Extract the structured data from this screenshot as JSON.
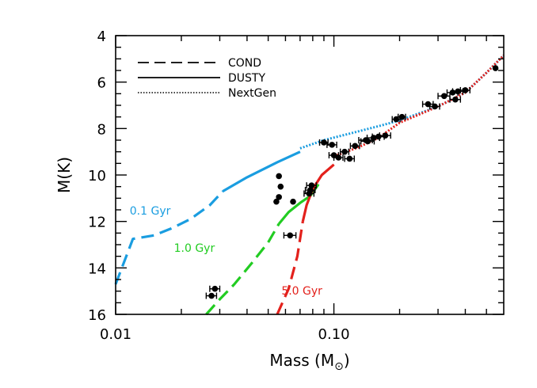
{
  "chart_data": {
    "type": "line",
    "xlabel": "Mass (M",
    "xlabel_symbol": "⊙",
    "xlabel_close": ")",
    "ylabel": "M(K)",
    "xscale": "log",
    "xlim": [
      0.01,
      0.6
    ],
    "ylim": [
      16,
      4
    ],
    "y_inverted": true,
    "grid": false,
    "legend_position": "top-left",
    "x_ticks": [
      {
        "value": 0.01,
        "label": "0.01"
      },
      {
        "value": 0.1,
        "label": "0.10"
      }
    ],
    "y_ticks": [
      {
        "value": 4,
        "label": "4"
      },
      {
        "value": 6,
        "label": "6"
      },
      {
        "value": 8,
        "label": "8"
      },
      {
        "value": 10,
        "label": "10"
      },
      {
        "value": 12,
        "label": "12"
      },
      {
        "value": 14,
        "label": "14"
      },
      {
        "value": 16,
        "label": "16"
      }
    ],
    "legend": [
      {
        "label": "COND",
        "style": "dashed"
      },
      {
        "label": "DUSTY",
        "style": "solid"
      },
      {
        "label": "NextGen",
        "style": "dotted"
      }
    ],
    "colors": {
      "young": "#1a9de0",
      "mid": "#22cc22",
      "old": "#e3211c",
      "points": "#000000"
    },
    "series": [
      {
        "name": "0.1 Gyr",
        "color": "#1a9de0",
        "label_x": 0.0116,
        "label_y": 11.7,
        "segments": [
          {
            "style": "dashed",
            "x": [
              0.01,
              0.012,
              0.015,
              0.018,
              0.022,
              0.027,
              0.031
            ],
            "y": [
              14.7,
              12.75,
              12.6,
              12.3,
              11.9,
              11.3,
              10.7
            ]
          },
          {
            "style": "solid",
            "x": [
              0.031,
              0.04,
              0.055,
              0.07
            ],
            "y": [
              10.7,
              10.1,
              9.45,
              9.0
            ]
          },
          {
            "style": "dotted",
            "x": [
              0.07,
              0.09,
              0.12,
              0.16,
              0.2,
              0.3,
              0.4,
              0.5,
              0.6
            ],
            "y": [
              8.85,
              8.5,
              8.2,
              7.9,
              7.65,
              7.05,
              6.45,
              5.6,
              4.85
            ]
          }
        ]
      },
      {
        "name": "1.0 Gyr",
        "color": "#22cc22",
        "label_x": 0.0185,
        "label_y": 13.3,
        "segments": [
          {
            "style": "dashed",
            "x": [
              0.026,
              0.03,
              0.035,
              0.042,
              0.05,
              0.056
            ],
            "y": [
              16.0,
              15.35,
              14.7,
              13.8,
              12.9,
              12.1
            ]
          },
          {
            "style": "solid",
            "x": [
              0.056,
              0.062,
              0.07,
              0.078,
              0.085
            ],
            "y": [
              12.1,
              11.6,
              11.2,
              10.9,
              10.4
            ]
          }
        ]
      },
      {
        "name": "5.0 Gyr",
        "color": "#e3211c",
        "label_x": 0.0575,
        "label_y": 15.15,
        "segments": [
          {
            "style": "dashed",
            "x": [
              0.055,
              0.062,
              0.068,
              0.072
            ],
            "y": [
              16.0,
              14.9,
              13.5,
              12.0
            ]
          },
          {
            "style": "solid",
            "x": [
              0.072,
              0.075,
              0.08,
              0.088,
              0.1
            ],
            "y": [
              12.0,
              11.3,
              10.6,
              10.0,
              9.55
            ]
          },
          {
            "style": "dotted",
            "x": [
              0.1,
              0.13,
              0.16,
              0.2,
              0.3,
              0.4,
              0.5,
              0.6
            ],
            "y": [
              9.2,
              8.8,
              8.4,
              7.75,
              7.05,
              6.45,
              5.6,
              4.85
            ]
          }
        ]
      }
    ],
    "points": [
      {
        "x": 0.0285,
        "y": 14.9,
        "xerr": 0.0015
      },
      {
        "x": 0.0275,
        "y": 15.2,
        "xerr": 0.0015
      },
      {
        "x": 0.0545,
        "y": 11.15
      },
      {
        "x": 0.056,
        "y": 10.95
      },
      {
        "x": 0.057,
        "y": 10.5
      },
      {
        "x": 0.056,
        "y": 10.05
      },
      {
        "x": 0.065,
        "y": 11.15
      },
      {
        "x": 0.077,
        "y": 10.8,
        "xerr": 0.004
      },
      {
        "x": 0.078,
        "y": 10.65,
        "xerr": 0.004
      },
      {
        "x": 0.079,
        "y": 10.45,
        "xerr": 0.004
      },
      {
        "x": 0.063,
        "y": 12.6,
        "xerr": 0.004
      },
      {
        "x": 0.09,
        "y": 8.6,
        "xerr": 0.004
      },
      {
        "x": 0.098,
        "y": 8.7,
        "xerr": 0.005
      },
      {
        "x": 0.1,
        "y": 9.15,
        "xerr": 0.005
      },
      {
        "x": 0.105,
        "y": 9.25,
        "xerr": 0.005
      },
      {
        "x": 0.112,
        "y": 9.0,
        "xerr": 0.005
      },
      {
        "x": 0.118,
        "y": 9.3,
        "xerr": 0.006
      },
      {
        "x": 0.125,
        "y": 8.75,
        "xerr": 0.006
      },
      {
        "x": 0.14,
        "y": 8.5,
        "xerr": 0.01
      },
      {
        "x": 0.143,
        "y": 8.55,
        "xerr": 0.01
      },
      {
        "x": 0.152,
        "y": 8.4,
        "xerr": 0.01
      },
      {
        "x": 0.16,
        "y": 8.35,
        "xerr": 0.01
      },
      {
        "x": 0.172,
        "y": 8.3,
        "xerr": 0.01
      },
      {
        "x": 0.193,
        "y": 7.6,
        "xerr": 0.008
      },
      {
        "x": 0.205,
        "y": 7.5,
        "xerr": 0.008
      },
      {
        "x": 0.27,
        "y": 6.95,
        "xerr": 0.015
      },
      {
        "x": 0.29,
        "y": 7.05,
        "xerr": 0.015
      },
      {
        "x": 0.32,
        "y": 6.6,
        "xerr": 0.02
      },
      {
        "x": 0.35,
        "y": 6.45,
        "xerr": 0.02
      },
      {
        "x": 0.36,
        "y": 6.75,
        "xerr": 0.02
      },
      {
        "x": 0.37,
        "y": 6.4,
        "xerr": 0.02
      },
      {
        "x": 0.4,
        "y": 6.35,
        "xerr": 0.02
      },
      {
        "x": 0.55,
        "y": 5.4
      }
    ]
  }
}
